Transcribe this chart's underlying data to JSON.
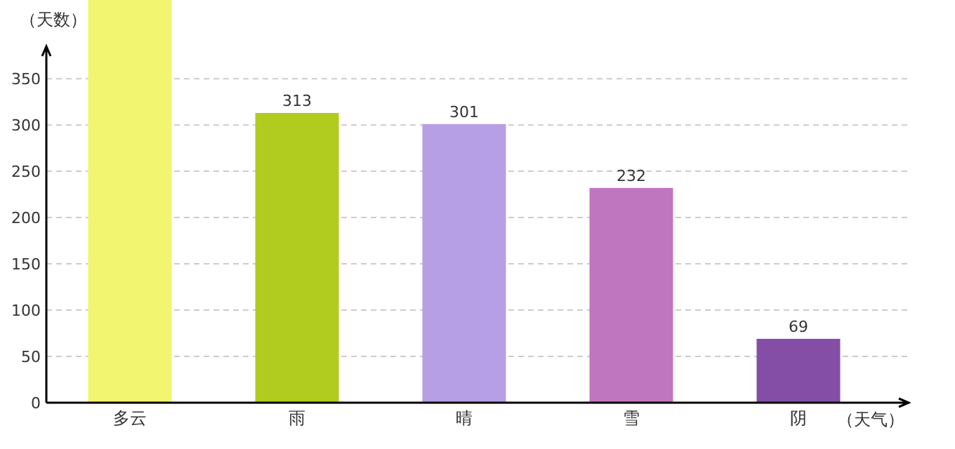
{
  "chart_data": {
    "type": "bar",
    "xlabel": "（天气）",
    "ylabel": "（天数）",
    "categories": [
      "多云",
      "雨",
      "晴",
      "雪",
      "阴"
    ],
    "values": [
      435,
      313,
      301,
      232,
      69
    ],
    "value_labels": [
      null,
      "313",
      "301",
      "232",
      "69"
    ],
    "colors": [
      "#f2f570",
      "#b2cb1f",
      "#b69fe4",
      "#c076bf",
      "#844ea6"
    ],
    "ylim": [
      0,
      435
    ],
    "yticks": [
      0,
      50,
      100,
      150,
      200,
      250,
      300,
      350
    ],
    "grid": "y"
  }
}
